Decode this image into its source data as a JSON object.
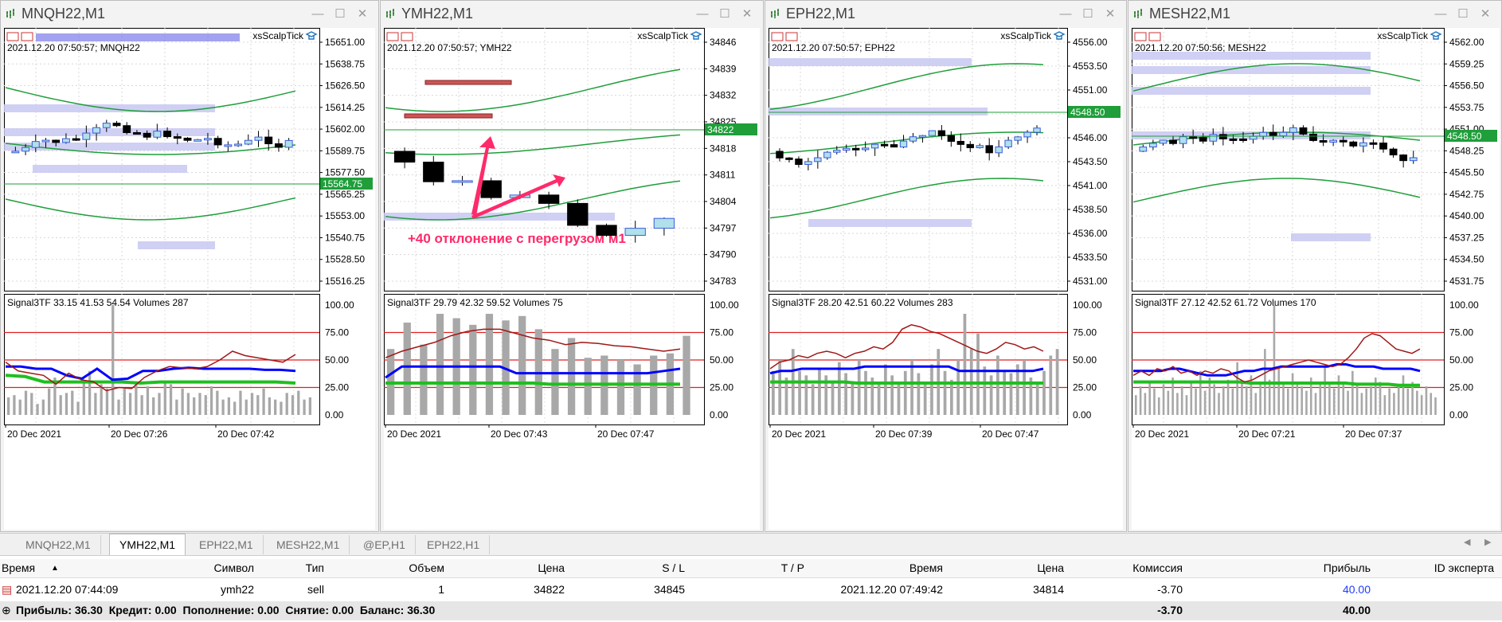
{
  "windows": [
    {
      "title": "MNQH22,M1",
      "info": "2021.12.20 07:50:57; MNQH22",
      "ea": "xsScalpTick",
      "axis": [
        "15651.00",
        "15638.75",
        "15626.50",
        "15614.25",
        "15602.00",
        "15589.75",
        "15577.50",
        "15565.25",
        "15553.00",
        "15540.75",
        "15528.50",
        "15516.25"
      ],
      "price_label": "15564.75",
      "indicator": "Signal3TF 33.15 41.53 54.54 Volumes 287",
      "ind_axis": [
        "100.00",
        "75.00",
        "50.00",
        "25.00",
        "0.00"
      ],
      "dates": [
        "20 Dec 2021",
        "20 Dec 07:26",
        "20 Dec 07:42"
      ],
      "red": [
        48,
        40,
        38,
        36,
        28,
        38,
        32,
        30,
        22,
        25,
        24,
        34,
        40,
        44,
        43,
        42,
        44,
        50,
        58,
        54,
        52,
        50,
        48,
        55
      ],
      "blue": [
        44,
        44,
        42,
        42,
        36,
        33,
        42,
        32,
        33,
        40,
        40,
        42,
        43,
        42,
        42,
        42,
        42,
        41,
        41,
        40
      ],
      "green": [
        36,
        35,
        30,
        30,
        30,
        30,
        30,
        29,
        30,
        30,
        30,
        30,
        30,
        30,
        30,
        29
      ],
      "vols": [
        16,
        18,
        14,
        22,
        20,
        10,
        14,
        24,
        34,
        18,
        20,
        22,
        12,
        30,
        40,
        20,
        28,
        24,
        100,
        14,
        24,
        20,
        30,
        18,
        26,
        16,
        20,
        30,
        28,
        14,
        24,
        20,
        16,
        20,
        18,
        26,
        22,
        14,
        16,
        12,
        22,
        14,
        20,
        18,
        24,
        16,
        14,
        12,
        20,
        18,
        22,
        14,
        16
      ]
    },
    {
      "title": "YMH22,M1",
      "info": "2021.12.20 07:50:57; YMH22",
      "ea": "xsScalpTick",
      "axis": [
        "34846",
        "34839",
        "34832",
        "34825",
        "34818",
        "34811",
        "34804",
        "34797",
        "34790",
        "34783"
      ],
      "price_label": "34822",
      "indicator": "Signal3TF 29.79 42.32 59.52 Volumes 75",
      "ind_axis": [
        "100.00",
        "75.00",
        "50.00",
        "25.00",
        "0.00"
      ],
      "dates": [
        "20 Dec 2021",
        "20 Dec 07:43",
        "20 Dec 07:47"
      ],
      "annotation": "+40 отклонение с перегрузом м1",
      "red": [
        52,
        58,
        62,
        66,
        72,
        76,
        78,
        78,
        74,
        70,
        68,
        64,
        66,
        65,
        63,
        62,
        60,
        58,
        60
      ],
      "blue": [
        34,
        44,
        44,
        44,
        44,
        44,
        44,
        44,
        38,
        38,
        38,
        38,
        38,
        38,
        38,
        38,
        38,
        40,
        42
      ],
      "green": [
        29,
        29,
        29,
        29,
        29,
        29,
        29,
        29,
        29,
        29,
        28,
        28,
        28,
        28,
        28,
        28,
        28,
        28,
        28
      ],
      "vols": [
        60,
        84,
        64,
        92,
        88,
        82,
        92,
        86,
        90,
        78,
        60,
        70,
        52,
        54,
        50,
        46,
        54,
        56,
        72
      ]
    },
    {
      "title": "EPH22,M1",
      "info": "2021.12.20 07:50:57; EPH22",
      "ea": "xsScalpTick",
      "axis": [
        "4556.00",
        "4553.50",
        "4551.00",
        "4548.50",
        "4546.00",
        "4543.50",
        "4541.00",
        "4538.50",
        "4536.00",
        "4533.50",
        "4531.00"
      ],
      "price_label": "4548.50",
      "indicator": "Signal3TF 28.20 42.51 60.22 Volumes 283",
      "ind_axis": [
        "100.00",
        "75.00",
        "50.00",
        "25.00",
        "0.00"
      ],
      "dates": [
        "20 Dec 2021",
        "20 Dec 07:39",
        "20 Dec 07:47"
      ],
      "red": [
        42,
        48,
        50,
        54,
        52,
        56,
        58,
        56,
        52,
        56,
        58,
        62,
        60,
        66,
        78,
        82,
        80,
        76,
        74,
        70,
        66,
        62,
        58,
        56,
        60,
        66,
        64,
        60,
        62,
        58
      ],
      "blue": [
        38,
        40,
        40,
        42,
        42,
        42,
        42,
        42,
        42,
        44,
        44,
        44,
        44,
        44,
        44,
        44,
        44,
        44,
        40,
        40,
        40,
        40,
        40,
        40,
        40,
        40,
        42
      ],
      "green": [
        30,
        30,
        30,
        30,
        30,
        30,
        30,
        29,
        29,
        29,
        29,
        29,
        29,
        29,
        29,
        29,
        29,
        29,
        29,
        29,
        29,
        29,
        29
      ],
      "vols": [
        40,
        50,
        34,
        60,
        40,
        36,
        28,
        42,
        36,
        30,
        48,
        38,
        30,
        50,
        40,
        34,
        30,
        46,
        36,
        28,
        40,
        50,
        38,
        30,
        46,
        60,
        40,
        32,
        50,
        92,
        60,
        74,
        44,
        36,
        54,
        40,
        38,
        46,
        50,
        34,
        30,
        40,
        54,
        60
      ]
    },
    {
      "title": "MESH22,M1",
      "info": "2021.12.20 07:50:56; MESH22",
      "ea": "xsScalpTick",
      "axis": [
        "4562.00",
        "4559.25",
        "4556.50",
        "4553.75",
        "4551.00",
        "4548.25",
        "4545.50",
        "4542.75",
        "4540.00",
        "4537.25",
        "4534.50",
        "4531.75"
      ],
      "price_label": "4548.50",
      "indicator": "Signal3TF 27.12 42.52 61.72 Volumes 170",
      "ind_axis": [
        "100.00",
        "75.00",
        "50.00",
        "25.00",
        "0.00"
      ],
      "dates": [
        "20 Dec 2021",
        "20 Dec 07:21",
        "20 Dec 07:37"
      ],
      "red": [
        36,
        40,
        36,
        42,
        40,
        44,
        38,
        40,
        36,
        40,
        38,
        42,
        40,
        34,
        30,
        32,
        36,
        40,
        42,
        44,
        46,
        48,
        50,
        48,
        46,
        44,
        46,
        52,
        60,
        70,
        74,
        72,
        66,
        60,
        58,
        56,
        60
      ],
      "blue": [
        40,
        40,
        40,
        40,
        42,
        42,
        40,
        38,
        36,
        36,
        36,
        38,
        40,
        40,
        42,
        42,
        44,
        44,
        44,
        44,
        44,
        44,
        46,
        46,
        44,
        44,
        44,
        42,
        42,
        42,
        42,
        40
      ],
      "green": [
        30,
        30,
        30,
        30,
        30,
        30,
        30,
        30,
        30,
        30,
        30,
        29,
        29,
        29,
        29,
        29,
        29,
        29,
        29,
        29,
        29,
        28,
        28,
        28,
        28,
        27,
        27,
        27
      ],
      "vols": [
        18,
        26,
        20,
        30,
        24,
        16,
        28,
        22,
        34,
        20,
        26,
        18,
        30,
        24,
        40,
        22,
        34,
        28,
        20,
        26,
        32,
        24,
        48,
        30,
        26,
        36,
        20,
        28,
        60,
        32,
        100,
        44,
        30,
        24,
        38,
        28,
        26,
        22,
        34,
        20,
        30,
        44,
        28,
        24,
        36,
        30,
        22,
        40,
        28,
        20,
        24,
        26,
        34,
        30,
        18,
        24,
        20,
        28,
        36,
        24,
        30,
        22,
        18,
        26,
        20,
        16
      ]
    }
  ],
  "tabs": [
    "MNQH22,M1",
    "YMH22,M1",
    "EPH22,M1",
    "MESH22,M1",
    "@EP,H1",
    "EPH22,H1"
  ],
  "active_tab": "YMH22,M1",
  "trades": {
    "headers": {
      "time": "Время",
      "symbol": "Символ",
      "type": "Тип",
      "volume": "Объем",
      "price": "Цена",
      "sl": "S / L",
      "tp": "T / P",
      "time2": "Время",
      "price2": "Цена",
      "commission": "Комиссия",
      "profit": "Прибыль",
      "ea_id": "ID эксперта"
    },
    "row": {
      "time": "2021.12.20 07:44:09",
      "symbol": "ymh22",
      "type": "sell",
      "volume": "1",
      "price": "34822",
      "sl": "34845",
      "tp": "",
      "time2": "2021.12.20 07:49:42",
      "price2": "34814",
      "commission": "-3.70",
      "profit": "40.00",
      "ea_id": ""
    },
    "summary": "Прибыль: 36.30  Кредит: 0.00  Пополнение: 0.00  Снятие: 0.00  Баланс: 36.30",
    "summary_commission": "-3.70",
    "summary_profit": "40.00"
  },
  "colors": {
    "bb": "#1f9e3a",
    "zone": "#c8c8f2",
    "red_line": "#e02020",
    "blue_line": "#0000ff",
    "green_line": "#1fbf1f",
    "profit": "#1e3cff",
    "arrow": "#ff2a6a"
  }
}
